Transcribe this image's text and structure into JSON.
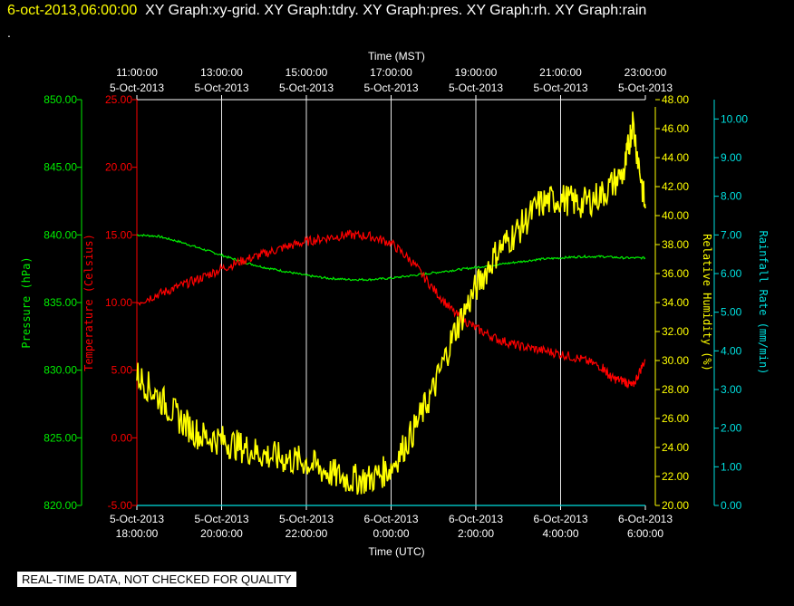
{
  "header": {
    "timestamp": "6-oct-2013,06:00:00",
    "window_titles": "XY Graph:xy-grid.  XY Graph:tdry.  XY Graph:pres.  XY Graph:rh.  XY Graph:rain",
    "dot": "."
  },
  "footer": {
    "notice": "REAL-TIME DATA, NOT CHECKED FOR QUALITY"
  },
  "colors": {
    "background": "#000000",
    "pressure": "#00ee00",
    "temperature": "#ff0000",
    "humidity": "#ffff00",
    "rain": "#00e0e0",
    "axis": "#ffffff",
    "grid": "#ffffff"
  },
  "chart_data": {
    "type": "line",
    "grid": true,
    "x_top": {
      "label": "Time (MST)",
      "ticks": [
        [
          "11:00:00",
          "5-Oct-2013"
        ],
        [
          "13:00:00",
          "5-Oct-2013"
        ],
        [
          "15:00:00",
          "5-Oct-2013"
        ],
        [
          "17:00:00",
          "5-Oct-2013"
        ],
        [
          "19:00:00",
          "5-Oct-2013"
        ],
        [
          "21:00:00",
          "5-Oct-2013"
        ],
        [
          "23:00:00",
          "5-Oct-2013"
        ]
      ]
    },
    "x_bottom": {
      "label": "Time (UTC)",
      "ticks": [
        [
          "5-Oct-2013",
          "18:00:00"
        ],
        [
          "5-Oct-2013",
          "20:00:00"
        ],
        [
          "5-Oct-2013",
          "22:00:00"
        ],
        [
          "6-Oct-2013",
          "0:00:00"
        ],
        [
          "6-Oct-2013",
          "2:00:00"
        ],
        [
          "6-Oct-2013",
          "4:00:00"
        ],
        [
          "6-Oct-2013",
          "6:00:00"
        ]
      ]
    },
    "x_range_hours_utc": [
      "5-Oct-2013 18:00",
      "6-Oct-2013 06:00"
    ],
    "axes": {
      "pressure": {
        "label": "Pressure (hPa)",
        "ylim": [
          820,
          850
        ],
        "ticks": [
          "820.00",
          "825.00",
          "830.00",
          "835.00",
          "840.00",
          "845.00",
          "850.00"
        ]
      },
      "temperature": {
        "label": "Temperature (Celsius)",
        "ylim": [
          -5,
          25
        ],
        "ticks": [
          "-5.00",
          "0.00",
          "5.00",
          "10.00",
          "15.00",
          "20.00",
          "25.00"
        ]
      },
      "humidity": {
        "label": "Relative Humidity (%)",
        "ylim": [
          20,
          48
        ],
        "ticks": [
          "20.00",
          "22.00",
          "24.00",
          "26.00",
          "28.00",
          "30.00",
          "32.00",
          "34.00",
          "36.00",
          "38.00",
          "40.00",
          "42.00",
          "44.00",
          "46.00",
          "48.00"
        ]
      },
      "rain": {
        "label": "Rainfall Rate (mm/min)",
        "ylim": [
          0,
          10.5
        ],
        "ticks": [
          "0.00",
          "1.00",
          "2.00",
          "3.00",
          "4.00",
          "5.00",
          "6.00",
          "7.00",
          "8.00",
          "9.00",
          "10.00"
        ]
      }
    },
    "series": [
      {
        "key": "pressure",
        "axis": "pressure",
        "x": [
          0,
          0.5,
          1,
          1.5,
          2,
          2.5,
          3,
          3.5,
          4,
          4.5,
          5,
          5.5,
          6,
          6.5,
          7,
          7.5,
          8,
          8.5,
          9,
          9.5,
          10,
          10.5,
          11,
          11.5,
          12
        ],
        "y": [
          840.0,
          839.9,
          839.5,
          839.0,
          838.5,
          838.0,
          837.6,
          837.3,
          837.0,
          836.8,
          836.7,
          836.7,
          836.8,
          837.0,
          837.2,
          837.4,
          837.6,
          837.8,
          838.0,
          838.2,
          838.3,
          838.4,
          838.4,
          838.3,
          838.3
        ]
      },
      {
        "key": "temperature",
        "axis": "temperature",
        "x": [
          0,
          0.5,
          1,
          1.5,
          2,
          2.5,
          3,
          3.5,
          4,
          4.5,
          5,
          5.5,
          6,
          6.5,
          7,
          7.5,
          8,
          8.5,
          9,
          9.5,
          10,
          10.5,
          11,
          11.2,
          11.5,
          11.7,
          12
        ],
        "y": [
          10.0,
          10.6,
          11.2,
          11.8,
          12.5,
          13.1,
          13.6,
          14.1,
          14.5,
          14.8,
          15.0,
          14.9,
          14.4,
          13.0,
          11.0,
          9.2,
          8.1,
          7.3,
          6.8,
          6.5,
          6.2,
          5.8,
          5.2,
          4.4,
          4.2,
          3.8,
          5.8
        ]
      },
      {
        "key": "humidity",
        "axis": "humidity",
        "x": [
          0,
          0.5,
          1,
          1.5,
          2,
          2.5,
          3,
          3.5,
          4,
          4.5,
          5,
          5.5,
          6,
          6.5,
          7,
          7.5,
          8,
          8.5,
          9,
          9.5,
          10,
          10.5,
          11,
          11.5,
          11.7,
          12
        ],
        "y": [
          29.0,
          27.5,
          26.0,
          24.8,
          24.5,
          24.0,
          23.5,
          23.2,
          23.0,
          22.3,
          21.8,
          21.8,
          22.6,
          25.0,
          28.0,
          32.0,
          35.0,
          37.5,
          39.0,
          40.8,
          41.2,
          40.8,
          41.5,
          43.0,
          46.5,
          40.5
        ]
      },
      {
        "key": "rain",
        "axis": "rain",
        "x": [
          0,
          12
        ],
        "y": [
          0,
          0
        ]
      }
    ]
  }
}
